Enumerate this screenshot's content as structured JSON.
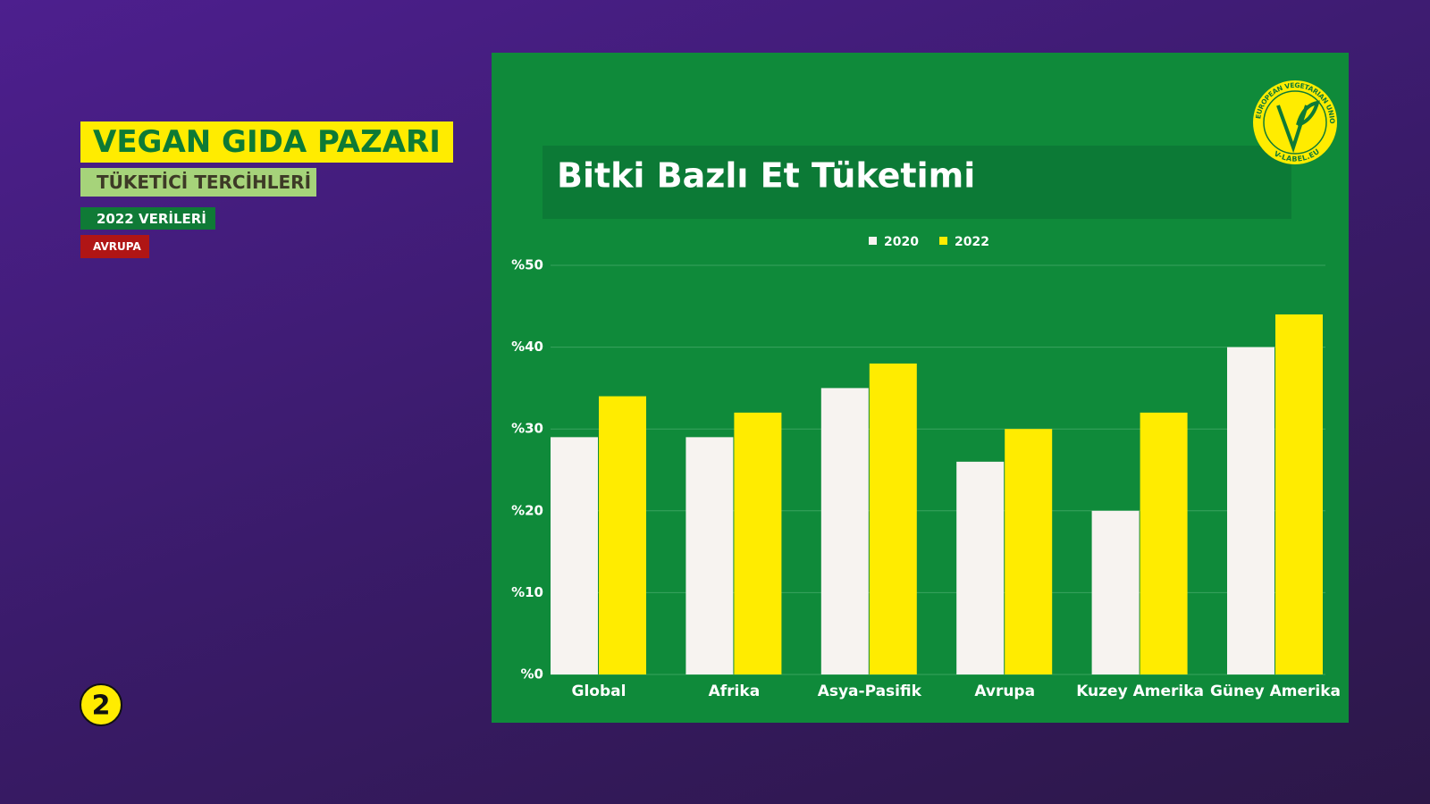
{
  "header": {
    "title": "VEGAN GIDA PAZARI",
    "subtitle": "TÜKETİCİ TERCİHLERİ",
    "tag_year": "2022 VERİLERİ",
    "tag_region": "AVRUPA",
    "page_number": "2"
  },
  "logo": {
    "ring_text": "EUROPEAN VEGETARIAN UNION",
    "site": "V-LABEL.EU"
  },
  "chart_data": {
    "type": "bar",
    "title": "Bitki Bazlı Et Tüketimi",
    "categories": [
      "Global",
      "Afrika",
      "Asya-Pasifik",
      "Avrupa",
      "Kuzey Amerika",
      "Güney Amerika"
    ],
    "series": [
      {
        "name": "2020",
        "color": "#f7f3f0",
        "values": [
          29,
          29,
          35,
          26,
          20,
          40
        ]
      },
      {
        "name": "2022",
        "color": "#ffec00",
        "values": [
          34,
          32,
          38,
          30,
          32,
          44
        ]
      }
    ],
    "ylim": [
      0,
      50
    ],
    "yticks": [
      {
        "value": 0,
        "label": "%0"
      },
      {
        "value": 10,
        "label": "%10"
      },
      {
        "value": 20,
        "label": "%20"
      },
      {
        "value": 30,
        "label": "%30"
      },
      {
        "value": 40,
        "label": "%40"
      },
      {
        "value": 50,
        "label": "%50"
      }
    ],
    "grid": true,
    "legend": "top"
  }
}
